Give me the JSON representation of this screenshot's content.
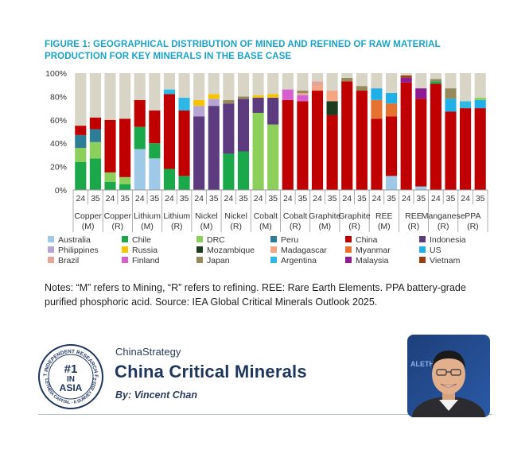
{
  "figure_title": "FIGURE 1: GEOGRAPHICAL DISTRIBUTION OF MINED AND REFINED OF RAW MATERIAL PRODUCTION FOR KEY MINERALS IN THE BASE CASE",
  "notes": "Notes: “M” refers to Mining, “R” refers to refining. REE: Rare Earth Elements. PPA battery-grade purified phosphoric acid. Source:  IEA Global Critical Minerals Outlook 2025.",
  "brand": {
    "small": "ChinaStrategy",
    "big": "China Critical Minerals",
    "author": "By: Vincent Chan",
    "seal_top": "BEST INDEPENDENT RESEARCH FIRM",
    "seal_rank": "#1",
    "seal_in": "IN",
    "seal_asia": "ASIA",
    "seal_bottom": "ALETHEIA CAPITAL - II SURVEY 2022-23",
    "photo_logo": "ALETHEIA"
  },
  "colors": {
    "Australia": "#9ecae8",
    "Chile": "#1aa84a",
    "DRC": "#8ccf5a",
    "Peru": "#2e7d96",
    "China": "#c00000",
    "Indonesia": "#5c3b7e",
    "Philippines": "#b7a5d3",
    "Russia": "#f6c400",
    "Mozambique": "#1c3b1f",
    "Madagascar": "#f4a582",
    "Myanmar": "#e5722e",
    "US": "#20b0e8",
    "Brazil": "#e7a49a",
    "Finland": "#d65fcf",
    "Japan": "#948a5b",
    "Argentina": "#2fb7e6",
    "Malaysia": "#8e1c91",
    "Vietnam": "#9c3f10",
    "Other": "#d9d5c6",
    "axis": "#999999",
    "text": "#333333"
  },
  "chart_data": {
    "type": "bar",
    "stacked": true,
    "ylim": [
      0,
      100
    ],
    "yticks": [
      "0%",
      "20%",
      "40%",
      "60%",
      "80%",
      "100%"
    ],
    "grid": false,
    "legend_position": "bottom",
    "groups": [
      {
        "name": "Copper",
        "sub": "(M)"
      },
      {
        "name": "Copper",
        "sub": "(R)"
      },
      {
        "name": "Lithium",
        "sub": "(M)"
      },
      {
        "name": "Lithium",
        "sub": "(R)"
      },
      {
        "name": "Nickel",
        "sub": "(M)"
      },
      {
        "name": "Nickel",
        "sub": "(R)"
      },
      {
        "name": "Cobalt",
        "sub": "(M)"
      },
      {
        "name": "Cobalt",
        "sub": "(R)"
      },
      {
        "name": "Graphite",
        "sub": "(M)"
      },
      {
        "name": "Graphite",
        "sub": "(R)"
      },
      {
        "name": "REE",
        "sub": "(M)"
      },
      {
        "name": "REE",
        "sub": "(R)"
      },
      {
        "name": "Manganese",
        "sub": "(R)"
      },
      {
        "name": "PPA",
        "sub": "(R)"
      }
    ],
    "years": [
      "24",
      "35"
    ],
    "legend": [
      "Australia",
      "Chile",
      "DRC",
      "Peru",
      "China",
      "Indonesia",
      "Philippines",
      "Russia",
      "Mozambique",
      "Madagascar",
      "Myanmar",
      "US",
      "Brazil",
      "Finland",
      "Japan",
      "Argentina",
      "Malaysia",
      "Vietnam"
    ],
    "bars": [
      [
        {
          "c": "Chile",
          "v": 24
        },
        {
          "c": "DRC",
          "v": 12
        },
        {
          "c": "Peru",
          "v": 11
        },
        {
          "c": "China",
          "v": 8
        }
      ],
      [
        {
          "c": "Chile",
          "v": 27
        },
        {
          "c": "DRC",
          "v": 14
        },
        {
          "c": "Peru",
          "v": 11
        },
        {
          "c": "China",
          "v": 10
        }
      ],
      [
        {
          "c": "Chile",
          "v": 7
        },
        {
          "c": "DRC",
          "v": 8
        },
        {
          "c": "China",
          "v": 45
        }
      ],
      [
        {
          "c": "Chile",
          "v": 5
        },
        {
          "c": "DRC",
          "v": 6
        },
        {
          "c": "China",
          "v": 50
        }
      ],
      [
        {
          "c": "Australia",
          "v": 35
        },
        {
          "c": "Chile",
          "v": 19
        },
        {
          "c": "China",
          "v": 23
        }
      ],
      [
        {
          "c": "Australia",
          "v": 27
        },
        {
          "c": "Chile",
          "v": 13
        },
        {
          "c": "China",
          "v": 28
        }
      ],
      [
        {
          "c": "Chile",
          "v": 18
        },
        {
          "c": "China",
          "v": 64
        },
        {
          "c": "Argentina",
          "v": 4
        }
      ],
      [
        {
          "c": "Chile",
          "v": 12
        },
        {
          "c": "China",
          "v": 56
        },
        {
          "c": "Argentina",
          "v": 11
        }
      ],
      [
        {
          "c": "Indonesia",
          "v": 63
        },
        {
          "c": "Philippines",
          "v": 9
        },
        {
          "c": "Russia",
          "v": 5
        }
      ],
      [
        {
          "c": "Indonesia",
          "v": 72
        },
        {
          "c": "Philippines",
          "v": 6
        },
        {
          "c": "Russia",
          "v": 4
        }
      ],
      [
        {
          "c": "Chile",
          "v": 31
        },
        {
          "c": "Indonesia",
          "v": 43
        },
        {
          "c": "Japan",
          "v": 3
        }
      ],
      [
        {
          "c": "Chile",
          "v": 33
        },
        {
          "c": "Indonesia",
          "v": 45
        },
        {
          "c": "Japan",
          "v": 2
        }
      ],
      [
        {
          "c": "DRC",
          "v": 66
        },
        {
          "c": "Indonesia",
          "v": 13
        },
        {
          "c": "Russia",
          "v": 2
        }
      ],
      [
        {
          "c": "DRC",
          "v": 56
        },
        {
          "c": "Indonesia",
          "v": 23
        },
        {
          "c": "Russia",
          "v": 3
        }
      ],
      [
        {
          "c": "China",
          "v": 77
        },
        {
          "c": "Finland",
          "v": 9
        }
      ],
      [
        {
          "c": "China",
          "v": 76
        },
        {
          "c": "Finland",
          "v": 5
        },
        {
          "c": "Brazil",
          "v": 2
        },
        {
          "c": "Japan",
          "v": 2
        }
      ],
      [
        {
          "c": "China",
          "v": 85
        },
        {
          "c": "Madagascar",
          "v": 4
        },
        {
          "c": "Brazil",
          "v": 4
        }
      ],
      [
        {
          "c": "China",
          "v": 64
        },
        {
          "c": "Mozambique",
          "v": 12
        },
        {
          "c": "Madagascar",
          "v": 9
        }
      ],
      [
        {
          "c": "China",
          "v": 93
        },
        {
          "c": "Japan",
          "v": 3
        }
      ],
      [
        {
          "c": "China",
          "v": 85
        },
        {
          "c": "Japan",
          "v": 4
        }
      ],
      [
        {
          "c": "China",
          "v": 61
        },
        {
          "c": "Myanmar",
          "v": 16
        },
        {
          "c": "US",
          "v": 10
        }
      ],
      [
        {
          "c": "Australia",
          "v": 12
        },
        {
          "c": "China",
          "v": 51
        },
        {
          "c": "Myanmar",
          "v": 11
        },
        {
          "c": "US",
          "v": 9
        }
      ],
      [
        {
          "c": "China",
          "v": 92
        },
        {
          "c": "Malaysia",
          "v": 4
        },
        {
          "c": "Vietnam",
          "v": 2
        }
      ],
      [
        {
          "c": "Australia",
          "v": 3
        },
        {
          "c": "China",
          "v": 75
        },
        {
          "c": "Malaysia",
          "v": 9
        }
      ],
      [
        {
          "c": "China",
          "v": 91
        },
        {
          "c": "Chile",
          "v": 2
        },
        {
          "c": "Japan",
          "v": 2
        }
      ],
      [
        {
          "c": "China",
          "v": 67
        },
        {
          "c": "US",
          "v": 11
        },
        {
          "c": "Japan",
          "v": 9
        }
      ],
      [
        {
          "c": "China",
          "v": 70
        },
        {
          "c": "Argentina",
          "v": 6
        }
      ],
      [
        {
          "c": "China",
          "v": 70
        },
        {
          "c": "US",
          "v": 7
        },
        {
          "c": "DRC",
          "v": 2
        }
      ]
    ]
  }
}
